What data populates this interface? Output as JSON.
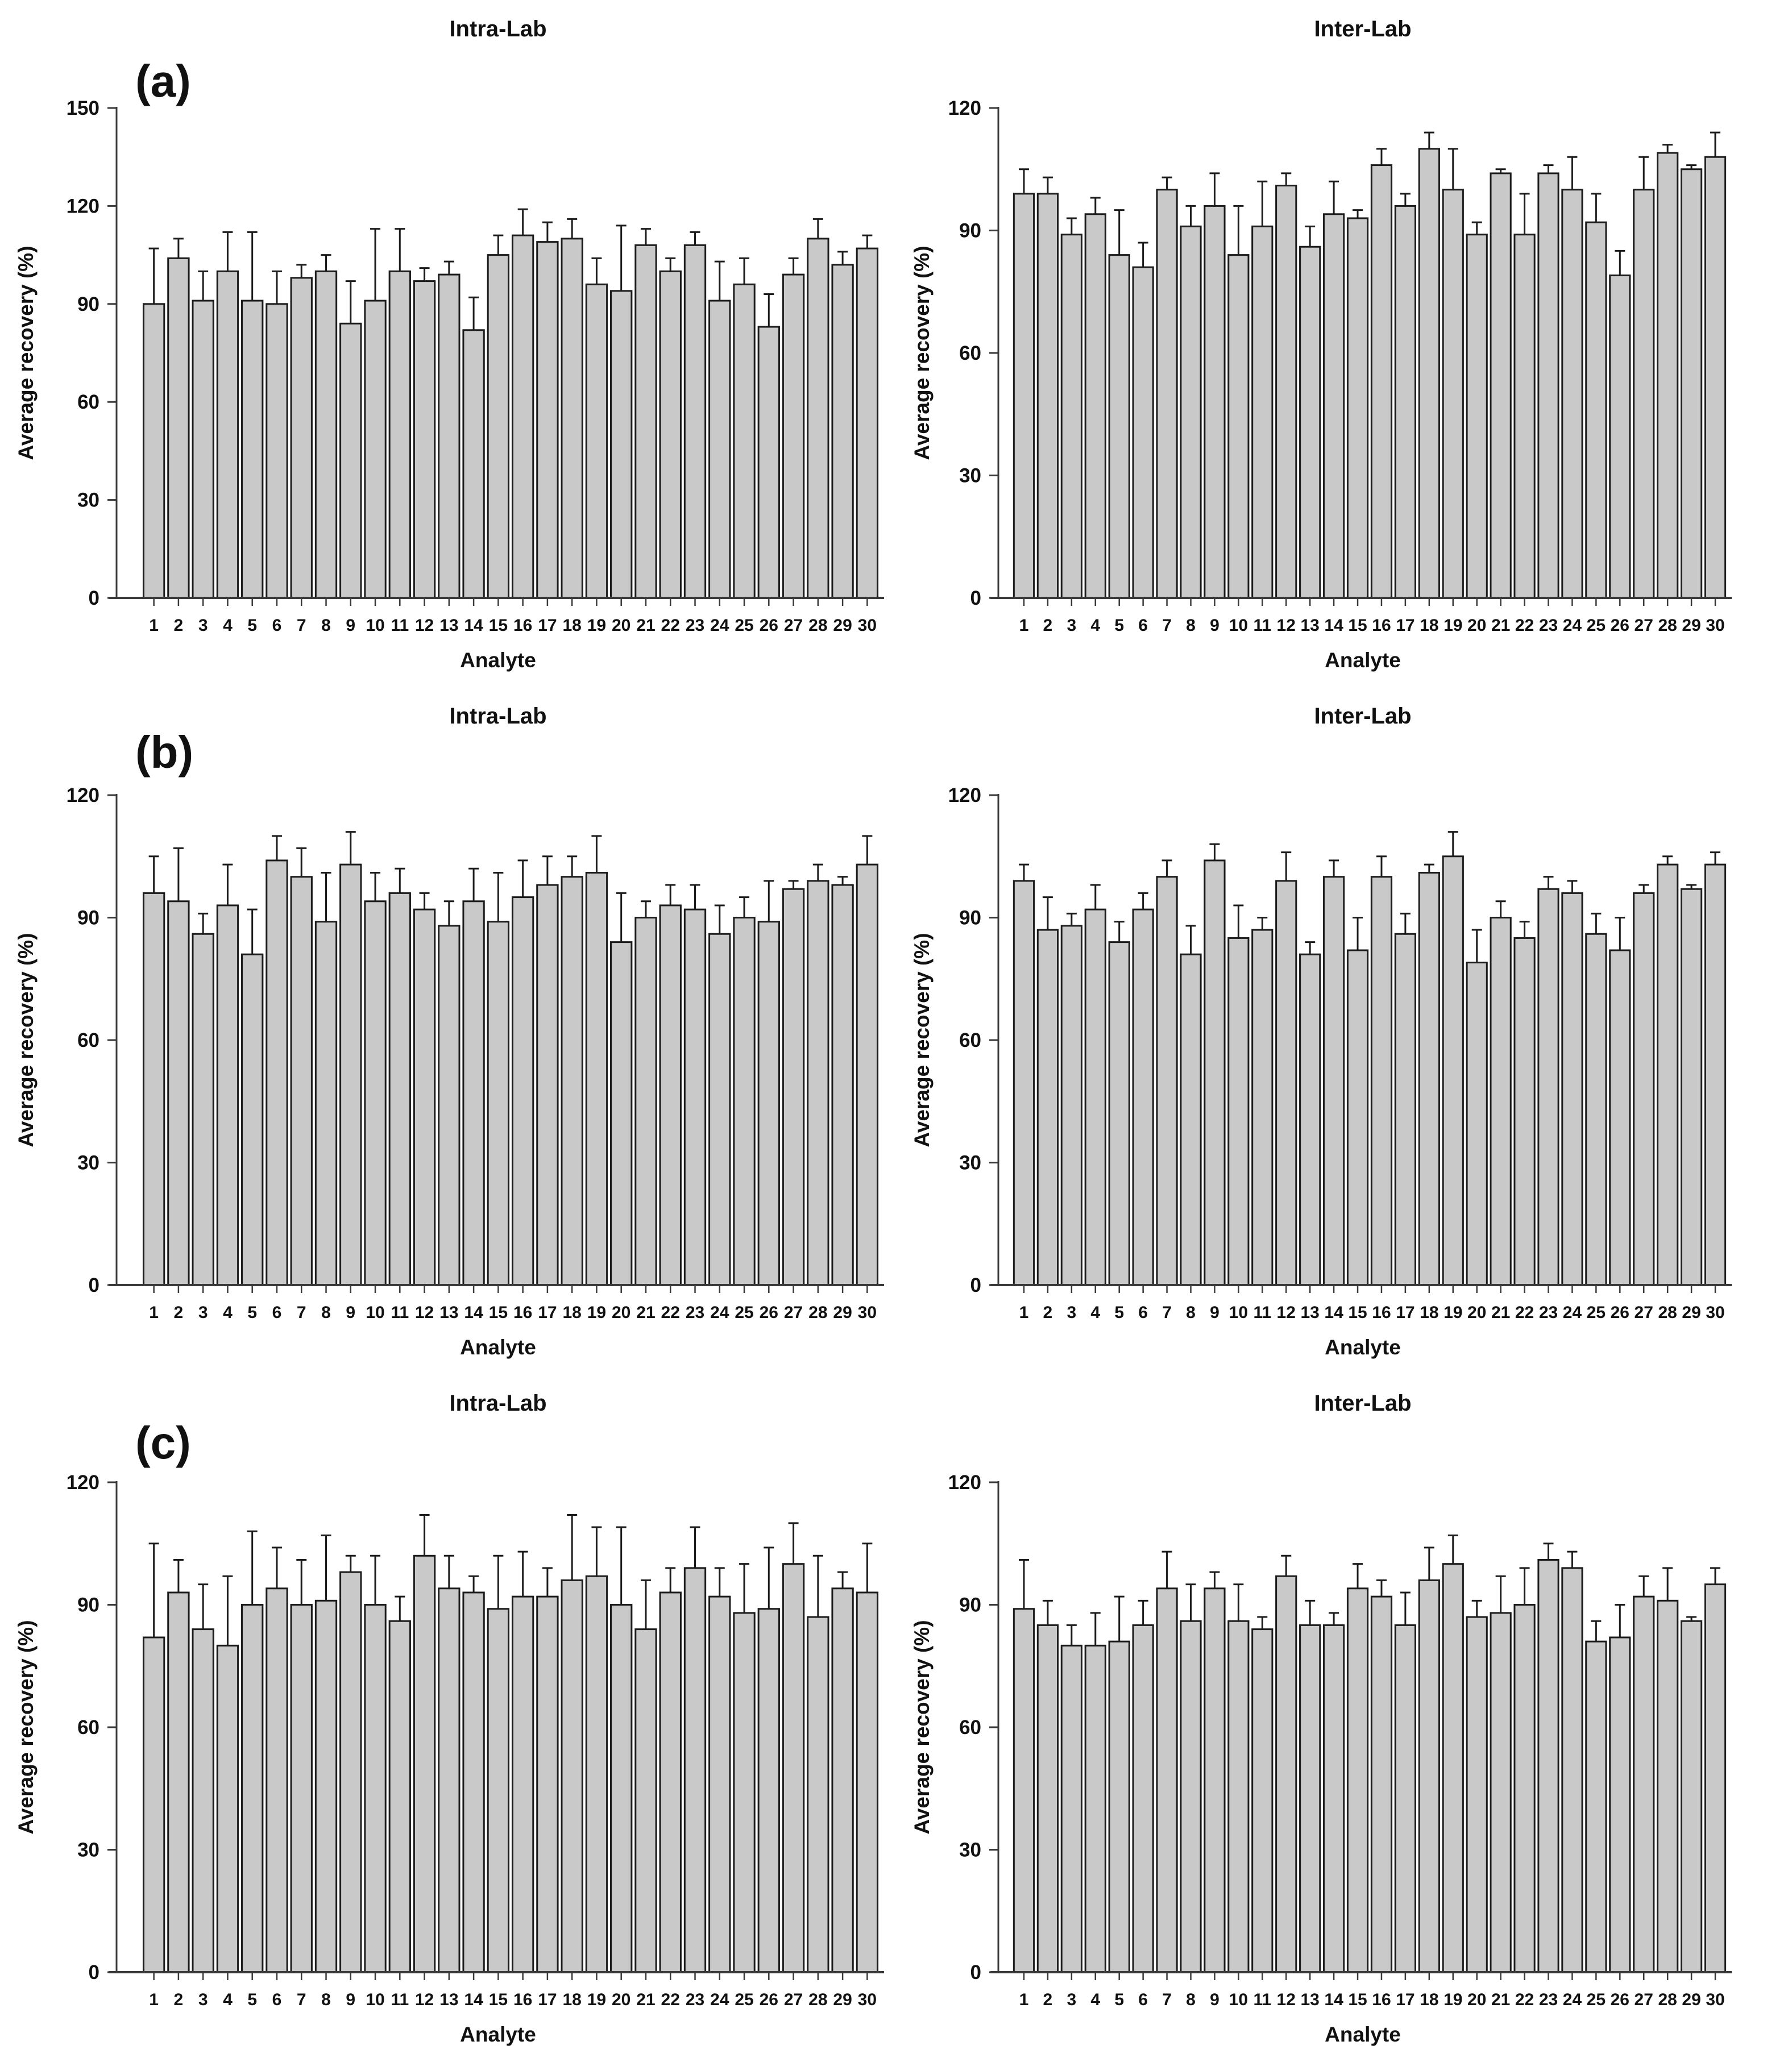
{
  "figure": {
    "ylabel": "Average recovery (%)",
    "xlabel": "Analyte",
    "colors": {
      "background": "#ffffff",
      "bar_fill": "#c9c9c9",
      "bar_stroke": "#1c1c1c",
      "axis": "#3a3a3a",
      "text": "#111111"
    }
  },
  "chart_data": [
    {
      "type": "bar",
      "panel_label": "(a)",
      "title": "Intra-Lab",
      "xlabel": "Analyte",
      "ylabel": "Average recovery (%)",
      "ylim": [
        0,
        150
      ],
      "yticks": [
        0,
        30,
        60,
        90,
        120,
        150
      ],
      "grid": false,
      "legend": null,
      "categories": [
        "1",
        "2",
        "3",
        "4",
        "5",
        "6",
        "7",
        "8",
        "9",
        "10",
        "11",
        "12",
        "13",
        "14",
        "15",
        "16",
        "17",
        "18",
        "19",
        "20",
        "21",
        "22",
        "23",
        "24",
        "25",
        "26",
        "27",
        "28",
        "29",
        "30"
      ],
      "values": [
        90,
        104,
        91,
        100,
        91,
        90,
        98,
        100,
        84,
        91,
        100,
        97,
        99,
        82,
        105,
        111,
        109,
        110,
        96,
        94,
        108,
        100,
        108,
        91,
        96,
        83,
        99,
        110,
        102,
        107
      ],
      "errors_up": [
        17,
        6,
        9,
        12,
        21,
        10,
        4,
        5,
        13,
        22,
        13,
        4,
        4,
        10,
        6,
        8,
        6,
        6,
        8,
        20,
        5,
        4,
        4,
        12,
        8,
        10,
        5,
        6,
        4,
        4
      ]
    },
    {
      "type": "bar",
      "panel_label": "",
      "title": "Inter-Lab",
      "xlabel": "Analyte",
      "ylabel": "Average recovery (%)",
      "ylim": [
        0,
        120
      ],
      "yticks": [
        0,
        30,
        60,
        90,
        120
      ],
      "grid": false,
      "legend": null,
      "categories": [
        "1",
        "2",
        "3",
        "4",
        "5",
        "6",
        "7",
        "8",
        "9",
        "10",
        "11",
        "12",
        "13",
        "14",
        "15",
        "16",
        "17",
        "18",
        "19",
        "20",
        "21",
        "22",
        "23",
        "24",
        "25",
        "26",
        "27",
        "28",
        "29",
        "30"
      ],
      "values": [
        99,
        99,
        89,
        94,
        84,
        81,
        100,
        91,
        96,
        84,
        91,
        101,
        86,
        94,
        93,
        106,
        96,
        110,
        100,
        89,
        104,
        89,
        104,
        100,
        92,
        79,
        100,
        109,
        105,
        108
      ],
      "errors_up": [
        6,
        4,
        4,
        4,
        11,
        6,
        3,
        5,
        8,
        12,
        11,
        3,
        5,
        8,
        2,
        4,
        3,
        4,
        10,
        3,
        1,
        10,
        2,
        8,
        7,
        6,
        8,
        2,
        1,
        6
      ]
    },
    {
      "type": "bar",
      "panel_label": "(b)",
      "title": "Intra-Lab",
      "xlabel": "Analyte",
      "ylabel": "Average recovery (%)",
      "ylim": [
        0,
        120
      ],
      "yticks": [
        0,
        30,
        60,
        90,
        120
      ],
      "grid": false,
      "legend": null,
      "categories": [
        "1",
        "2",
        "3",
        "4",
        "5",
        "6",
        "7",
        "8",
        "9",
        "10",
        "11",
        "12",
        "13",
        "14",
        "15",
        "16",
        "17",
        "18",
        "19",
        "20",
        "21",
        "22",
        "23",
        "24",
        "25",
        "26",
        "27",
        "28",
        "29",
        "30"
      ],
      "values": [
        96,
        94,
        86,
        93,
        81,
        104,
        100,
        89,
        103,
        94,
        96,
        92,
        88,
        94,
        89,
        95,
        98,
        100,
        101,
        84,
        90,
        93,
        92,
        86,
        90,
        89,
        97,
        99,
        98,
        103
      ],
      "errors_up": [
        9,
        13,
        5,
        10,
        11,
        6,
        7,
        12,
        8,
        7,
        6,
        4,
        6,
        8,
        12,
        9,
        7,
        5,
        9,
        12,
        4,
        5,
        6,
        7,
        5,
        10,
        2,
        4,
        2,
        7
      ]
    },
    {
      "type": "bar",
      "panel_label": "",
      "title": "Inter-Lab",
      "xlabel": "Analyte",
      "ylabel": "Average recovery (%)",
      "ylim": [
        0,
        120
      ],
      "yticks": [
        0,
        30,
        60,
        90,
        120
      ],
      "grid": false,
      "legend": null,
      "categories": [
        "1",
        "2",
        "3",
        "4",
        "5",
        "6",
        "7",
        "8",
        "9",
        "10",
        "11",
        "12",
        "13",
        "14",
        "15",
        "16",
        "17",
        "18",
        "19",
        "20",
        "21",
        "22",
        "23",
        "24",
        "25",
        "26",
        "27",
        "28",
        "29",
        "30"
      ],
      "values": [
        99,
        87,
        88,
        92,
        84,
        92,
        100,
        81,
        104,
        85,
        87,
        99,
        81,
        100,
        82,
        100,
        86,
        101,
        105,
        79,
        90,
        85,
        97,
        96,
        86,
        82,
        96,
        103,
        97,
        103
      ],
      "errors_up": [
        4,
        8,
        3,
        6,
        5,
        4,
        4,
        7,
        4,
        8,
        3,
        7,
        3,
        4,
        8,
        5,
        5,
        2,
        6,
        8,
        4,
        4,
        3,
        3,
        5,
        8,
        2,
        2,
        1,
        3
      ]
    },
    {
      "type": "bar",
      "panel_label": "(c)",
      "title": "Intra-Lab",
      "xlabel": "Analyte",
      "ylabel": "Average recovery (%)",
      "ylim": [
        0,
        120
      ],
      "yticks": [
        0,
        30,
        60,
        90,
        120
      ],
      "grid": false,
      "legend": null,
      "categories": [
        "1",
        "2",
        "3",
        "4",
        "5",
        "6",
        "7",
        "8",
        "9",
        "10",
        "11",
        "12",
        "13",
        "14",
        "15",
        "16",
        "17",
        "18",
        "19",
        "20",
        "21",
        "22",
        "23",
        "24",
        "25",
        "26",
        "27",
        "28",
        "29",
        "30"
      ],
      "values": [
        82,
        93,
        84,
        80,
        90,
        94,
        90,
        91,
        98,
        90,
        86,
        102,
        94,
        93,
        89,
        92,
        92,
        96,
        97,
        90,
        84,
        93,
        99,
        92,
        88,
        89,
        100,
        87,
        94,
        93
      ],
      "errors_up": [
        23,
        8,
        11,
        17,
        18,
        10,
        11,
        16,
        4,
        12,
        6,
        10,
        8,
        4,
        13,
        11,
        7,
        16,
        12,
        19,
        12,
        6,
        10,
        7,
        12,
        15,
        10,
        15,
        4,
        12
      ]
    },
    {
      "type": "bar",
      "panel_label": "",
      "title": "Inter-Lab",
      "xlabel": "Analyte",
      "ylabel": "Average recovery (%)",
      "ylim": [
        0,
        120
      ],
      "yticks": [
        0,
        30,
        60,
        90,
        120
      ],
      "grid": false,
      "legend": null,
      "categories": [
        "1",
        "2",
        "3",
        "4",
        "5",
        "6",
        "7",
        "8",
        "9",
        "10",
        "11",
        "12",
        "13",
        "14",
        "15",
        "16",
        "17",
        "18",
        "19",
        "20",
        "21",
        "22",
        "23",
        "24",
        "25",
        "26",
        "27",
        "28",
        "29",
        "30"
      ],
      "values": [
        89,
        85,
        80,
        80,
        81,
        85,
        94,
        86,
        94,
        86,
        84,
        97,
        85,
        85,
        94,
        92,
        85,
        96,
        100,
        87,
        88,
        90,
        101,
        99,
        81,
        82,
        92,
        91,
        86,
        95
      ],
      "errors_up": [
        12,
        6,
        5,
        8,
        11,
        6,
        9,
        9,
        4,
        9,
        3,
        5,
        6,
        3,
        6,
        4,
        8,
        8,
        7,
        4,
        9,
        9,
        4,
        4,
        5,
        8,
        5,
        8,
        1,
        4
      ]
    }
  ]
}
